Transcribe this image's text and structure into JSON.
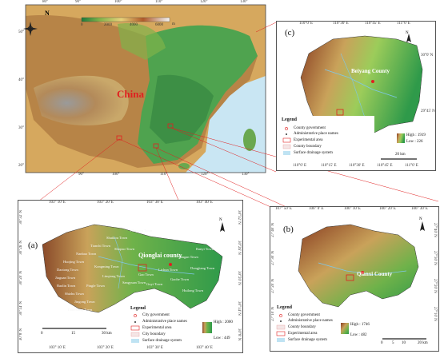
{
  "main_map": {
    "label_china": "China",
    "north": "N",
    "colorbar_ticks": [
      "0",
      "2000",
      "4000",
      "6000"
    ],
    "colorbar_unit": "m",
    "top_ticks": [
      "80°",
      "90°",
      "100°",
      "110°",
      "120°",
      "130°"
    ],
    "bottom_ticks": [
      "90°",
      "100°",
      "110°",
      "120°",
      "130°"
    ],
    "left_ticks": [
      "50°",
      "40°",
      "30°",
      "20°"
    ]
  },
  "panel_a": {
    "label": "(a)",
    "county": "Qionglai county",
    "north": "N",
    "top_ticks": [
      "103° 10' E",
      "103° 20' E",
      "103° 30' E",
      "103° 40' E"
    ],
    "bottom_ticks": [
      "103° 10' E",
      "103° 20' E",
      "103° 30' E",
      "103° 40' E"
    ],
    "left_ticks": [
      "30°32' N",
      "30°26' N",
      "30°20' N",
      "30°14' N",
      "30°8' N"
    ],
    "right_ticks": [
      "30°32' N",
      "30°26' N",
      "30°20' N",
      "30°14' N",
      "30°8' N"
    ],
    "towns": [
      "Chayuan Town",
      "Shuikou Town",
      "Tianchi Town",
      "Nanbao Town",
      "Huojing Town",
      "Daotong Town",
      "Jiaguan Town",
      "Baolin Town",
      "Yangan Town",
      "Gaohe Town",
      "Shizhu Town",
      "Linqiong Town",
      "Sangyuan Town",
      "Guyi Town",
      "Pingle Town",
      "Lichun Town",
      "Dongjiang Town",
      "Huilong Town",
      "Kongming Town",
      "Ranyi Town",
      "Gao Town",
      "Jingong Town",
      "Liaochang Town",
      "Shiqiao Town"
    ],
    "legend_title": "Legend",
    "legend_items": [
      "City government",
      "Administrative place names",
      "Experimental area",
      "City boundary",
      "Surface drainage system"
    ],
    "high": "High : 2000",
    "low": "Low : 449",
    "scale": [
      "0",
      "15",
      "30 km"
    ]
  },
  "panel_b": {
    "label": "(b)",
    "county": "Qianxi County",
    "north": "N",
    "top_ticks": [
      "107° 50' E",
      "106° 0' E",
      "106° 10' E",
      "106° 20' E",
      "106° 30' E"
    ],
    "left_ticks": [
      "27°40' N",
      "27°30' N",
      "27°20' N",
      "27°10' N"
    ],
    "right_ticks": [
      "27°40' N",
      "27°30' N",
      "27°20' N",
      "27°10' N"
    ],
    "legend_title": "Legend",
    "legend_items": [
      "County government",
      "Administrative place names",
      "County boundary",
      "Experimental area",
      "Surface drainage system"
    ],
    "high": "High : 1746",
    "low": "Low : 482",
    "scale": [
      "0",
      "5",
      "10",
      "20 km"
    ]
  },
  "panel_c": {
    "label": "(c)",
    "county": "Beiyang County",
    "north": "N",
    "top_ticks": [
      "110°0' E",
      "110°30' E",
      "110°45' E",
      "111°0' E"
    ],
    "bottom_ticks": [
      "110°0' E",
      "110°15' E",
      "110°30' E",
      "110°45' E",
      "111°0' E"
    ],
    "right_ticks": [
      "30°0' N",
      "29°45' N"
    ],
    "legend_title": "Legend",
    "legend_items": [
      "County government",
      "Administrative place names",
      "Experimental area",
      "County boundary",
      "Surface drainage system"
    ],
    "high": "High : 1919",
    "low": "Low : 226",
    "scale": [
      "20 km"
    ]
  },
  "colors": {
    "terrain_low": "#2f9a4a",
    "terrain_mid": "#d9c36a",
    "terrain_high": "#8a4a2a",
    "water": "#bfe3f3",
    "red": "#e02020"
  }
}
